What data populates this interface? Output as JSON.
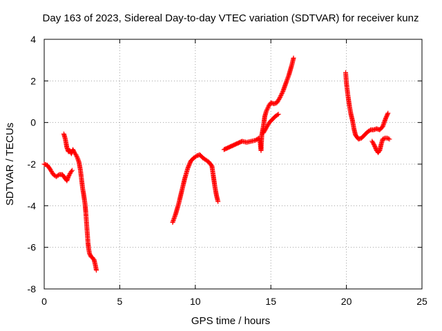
{
  "chart_data": {
    "type": "scatter",
    "title": "Day 163 of 2023, Sidereal Day-to-day VTEC variation (SDTVAR) for receiver kunz",
    "xlabel": "GPS time / hours",
    "ylabel": "SDTVAR / TECUs",
    "xlim": [
      0,
      25
    ],
    "ylim": [
      -8,
      4
    ],
    "xticks": [
      0,
      5,
      10,
      15,
      20,
      25
    ],
    "yticks": [
      -8,
      -6,
      -4,
      -2,
      0,
      2,
      4
    ],
    "xtick_labels": [
      "0",
      "5",
      "10",
      "15",
      "20",
      "25"
    ],
    "ytick_labels": [
      "-8",
      "-6",
      "-4",
      "-2",
      "0",
      "2",
      "4"
    ],
    "grid": true,
    "marker": "plus",
    "color": "#ff0000",
    "segments": [
      [
        [
          0.0,
          -2.0
        ],
        [
          0.2,
          -2.05
        ],
        [
          0.4,
          -2.25
        ],
        [
          0.6,
          -2.5
        ],
        [
          0.8,
          -2.6
        ],
        [
          1.0,
          -2.5
        ],
        [
          1.2,
          -2.5
        ],
        [
          1.4,
          -2.7
        ],
        [
          1.5,
          -2.8
        ],
        [
          1.6,
          -2.6
        ],
        [
          1.75,
          -2.4
        ],
        [
          1.85,
          -2.3
        ]
      ],
      [
        [
          1.3,
          -0.55
        ],
        [
          1.4,
          -0.8
        ],
        [
          1.5,
          -1.2
        ],
        [
          1.6,
          -1.4
        ],
        [
          1.7,
          -1.35
        ],
        [
          1.8,
          -1.5
        ],
        [
          1.9,
          -1.3
        ],
        [
          2.0,
          -1.45
        ],
        [
          2.1,
          -1.55
        ],
        [
          2.2,
          -1.7
        ],
        [
          2.3,
          -1.9
        ],
        [
          2.4,
          -2.3
        ],
        [
          2.5,
          -2.9
        ],
        [
          2.55,
          -3.2
        ],
        [
          2.6,
          -3.4
        ],
        [
          2.7,
          -3.9
        ],
        [
          2.75,
          -4.3
        ],
        [
          2.8,
          -4.8
        ],
        [
          2.85,
          -5.3
        ],
        [
          2.9,
          -5.8
        ],
        [
          2.95,
          -6.1
        ],
        [
          3.0,
          -6.3
        ],
        [
          3.1,
          -6.45
        ],
        [
          3.2,
          -6.5
        ],
        [
          3.3,
          -6.6
        ],
        [
          3.4,
          -6.9
        ],
        [
          3.45,
          -7.1
        ]
      ],
      [
        [
          8.5,
          -4.8
        ],
        [
          8.7,
          -4.4
        ],
        [
          8.9,
          -3.9
        ],
        [
          9.1,
          -3.3
        ],
        [
          9.3,
          -2.7
        ],
        [
          9.5,
          -2.2
        ],
        [
          9.7,
          -1.85
        ],
        [
          9.9,
          -1.7
        ],
        [
          10.1,
          -1.6
        ],
        [
          10.3,
          -1.55
        ],
        [
          10.5,
          -1.7
        ],
        [
          10.7,
          -1.8
        ],
        [
          10.9,
          -1.9
        ],
        [
          11.1,
          -2.1
        ],
        [
          11.2,
          -2.6
        ],
        [
          11.3,
          -3.1
        ],
        [
          11.4,
          -3.5
        ],
        [
          11.5,
          -3.8
        ]
      ],
      [
        [
          11.9,
          -1.3
        ],
        [
          12.2,
          -1.2
        ],
        [
          12.5,
          -1.1
        ],
        [
          12.8,
          -1.0
        ],
        [
          13.1,
          -0.9
        ],
        [
          13.4,
          -0.95
        ],
        [
          13.7,
          -0.9
        ],
        [
          14.0,
          -0.85
        ],
        [
          14.2,
          -0.75
        ],
        [
          14.3,
          -1.0
        ],
        [
          14.35,
          -1.35
        ],
        [
          14.4,
          -0.6
        ],
        [
          14.5,
          -0.2
        ],
        [
          14.6,
          0.3
        ],
        [
          14.7,
          0.55
        ],
        [
          14.8,
          0.7
        ],
        [
          14.9,
          0.85
        ],
        [
          15.0,
          0.95
        ],
        [
          15.2,
          0.9
        ],
        [
          15.4,
          0.95
        ],
        [
          15.6,
          1.2
        ],
        [
          15.8,
          1.5
        ],
        [
          16.0,
          1.9
        ],
        [
          16.2,
          2.3
        ],
        [
          16.4,
          2.8
        ],
        [
          16.5,
          3.1
        ]
      ],
      [
        [
          14.5,
          -0.5
        ],
        [
          14.7,
          -0.25
        ],
        [
          14.9,
          0.0
        ],
        [
          15.1,
          0.15
        ],
        [
          15.3,
          0.3
        ],
        [
          15.5,
          0.4
        ]
      ],
      [
        [
          19.95,
          2.4
        ],
        [
          20.0,
          1.9
        ],
        [
          20.1,
          1.3
        ],
        [
          20.2,
          0.8
        ],
        [
          20.3,
          0.4
        ],
        [
          20.4,
          0.1
        ],
        [
          20.5,
          -0.3
        ],
        [
          20.6,
          -0.6
        ],
        [
          20.8,
          -0.8
        ],
        [
          21.0,
          -0.75
        ],
        [
          21.2,
          -0.6
        ],
        [
          21.4,
          -0.45
        ],
        [
          21.6,
          -0.35
        ],
        [
          21.8,
          -0.35
        ],
        [
          22.0,
          -0.3
        ],
        [
          22.2,
          -0.35
        ],
        [
          22.4,
          -0.2
        ],
        [
          22.5,
          0.0
        ],
        [
          22.6,
          0.2
        ],
        [
          22.75,
          0.45
        ]
      ],
      [
        [
          21.7,
          -0.9
        ],
        [
          21.85,
          -1.1
        ],
        [
          22.0,
          -1.35
        ],
        [
          22.1,
          -1.45
        ],
        [
          22.2,
          -1.35
        ],
        [
          22.3,
          -1.05
        ],
        [
          22.4,
          -0.8
        ],
        [
          22.55,
          -0.75
        ],
        [
          22.7,
          -0.75
        ],
        [
          22.85,
          -0.8
        ]
      ]
    ]
  }
}
